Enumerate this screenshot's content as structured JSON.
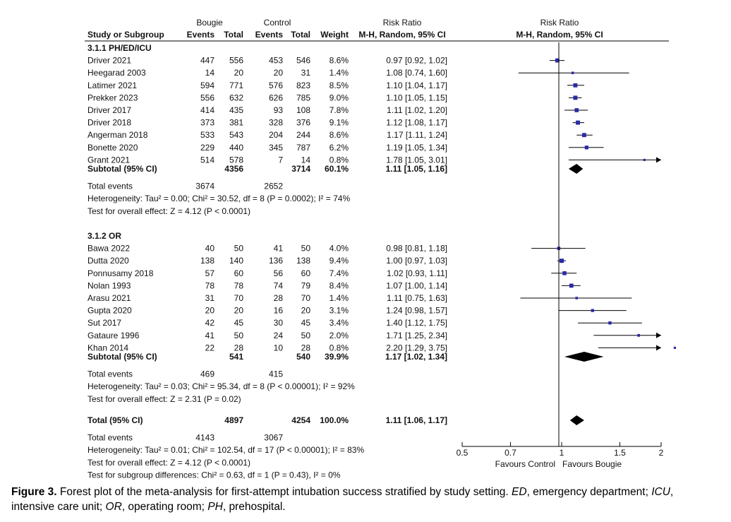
{
  "header": {
    "group1": "Bougie",
    "group2": "Control",
    "rr_col": "Risk Ratio",
    "rr_method": "M-H, Random, 95% CI",
    "plot_col": "Risk Ratio",
    "plot_method": "M-H, Random, 95% CI",
    "study_col": "Study or Subgroup",
    "events": "Events",
    "total": "Total",
    "weight": "Weight"
  },
  "chart_data": {
    "type": "forest",
    "xscale": "log",
    "xlim": [
      0.5,
      2
    ],
    "xticks": [
      {
        "value": 0.5,
        "label": "0.5"
      },
      {
        "value": 0.7,
        "label": "0.7"
      },
      {
        "value": 1,
        "label": "1"
      },
      {
        "value": 1.5,
        "label": "1.5"
      },
      {
        "value": 2,
        "label": "2"
      }
    ],
    "favours_left": "Favours Control",
    "favours_right": "Favours Bougie",
    "subgroups": [
      {
        "label": "3.1.1 PH/ED/ICU",
        "studies": [
          {
            "name": "Driver 2021",
            "e1": "447",
            "n1": "556",
            "e2": "453",
            "n2": "546",
            "weight": "8.6%",
            "rr_text": "0.97 [0.92, 1.02]",
            "rr": 0.97,
            "lo": 0.92,
            "hi": 1.02
          },
          {
            "name": "Heegarad 2003",
            "e1": "14",
            "n1": "20",
            "e2": "20",
            "n2": "31",
            "weight": "1.4%",
            "rr_text": "1.08 [0.74, 1.60]",
            "rr": 1.08,
            "lo": 0.74,
            "hi": 1.6
          },
          {
            "name": "Latimer 2021",
            "e1": "594",
            "n1": "771",
            "e2": "576",
            "n2": "823",
            "weight": "8.5%",
            "rr_text": "1.10 [1.04, 1.17]",
            "rr": 1.1,
            "lo": 1.04,
            "hi": 1.17
          },
          {
            "name": "Prekker 2023",
            "e1": "556",
            "n1": "632",
            "e2": "626",
            "n2": "785",
            "weight": "9.0%",
            "rr_text": "1.10 [1.05, 1.15]",
            "rr": 1.1,
            "lo": 1.05,
            "hi": 1.15
          },
          {
            "name": "Driver 2017",
            "e1": "414",
            "n1": "435",
            "e2": "93",
            "n2": "108",
            "weight": "7.8%",
            "rr_text": "1.11 [1.02, 1.20]",
            "rr": 1.11,
            "lo": 1.02,
            "hi": 1.2
          },
          {
            "name": "Driver 2018",
            "e1": "373",
            "n1": "381",
            "e2": "328",
            "n2": "376",
            "weight": "9.1%",
            "rr_text": "1.12 [1.08, 1.17]",
            "rr": 1.12,
            "lo": 1.08,
            "hi": 1.17
          },
          {
            "name": "Angerman 2018",
            "e1": "533",
            "n1": "543",
            "e2": "204",
            "n2": "244",
            "weight": "8.6%",
            "rr_text": "1.17 [1.11, 1.24]",
            "rr": 1.17,
            "lo": 1.11,
            "hi": 1.24
          },
          {
            "name": "Bonette 2020",
            "e1": "229",
            "n1": "440",
            "e2": "345",
            "n2": "787",
            "weight": "6.2%",
            "rr_text": "1.19 [1.05, 1.34]",
            "rr": 1.19,
            "lo": 1.05,
            "hi": 1.34
          },
          {
            "name": "Grant 2021",
            "e1": "514",
            "n1": "578",
            "e2": "7",
            "n2": "14",
            "weight": "0.8%",
            "rr_text": "1.78 [1.05, 3.01]",
            "rr": 1.78,
            "lo": 1.05,
            "hi": 3.01
          }
        ],
        "subtotal": {
          "label": "Subtotal (95% CI)",
          "n1": "4356",
          "n2": "3714",
          "weight": "60.1%",
          "rr_text": "1.11 [1.05, 1.16]",
          "rr": 1.11,
          "lo": 1.05,
          "hi": 1.16
        },
        "total_events": {
          "label": "Total events",
          "e1": "3674",
          "e2": "2652"
        },
        "heterogeneity": "Heterogeneity: Tau² = 0.00; Chi² = 30.52, df = 8 (P = 0.0002); I² = 74%",
        "overall": "Test for overall effect: Z = 4.12 (P < 0.0001)"
      },
      {
        "label": "3.1.2 OR",
        "studies": [
          {
            "name": "Bawa 2022",
            "e1": "40",
            "n1": "50",
            "e2": "41",
            "n2": "50",
            "weight": "4.0%",
            "rr_text": "0.98 [0.81, 1.18]",
            "rr": 0.98,
            "lo": 0.81,
            "hi": 1.18
          },
          {
            "name": "Dutta 2020",
            "e1": "138",
            "n1": "140",
            "e2": "136",
            "n2": "138",
            "weight": "9.4%",
            "rr_text": "1.00 [0.97, 1.03]",
            "rr": 1.0,
            "lo": 0.97,
            "hi": 1.03
          },
          {
            "name": "Ponnusamy 2018",
            "e1": "57",
            "n1": "60",
            "e2": "56",
            "n2": "60",
            "weight": "7.4%",
            "rr_text": "1.02 [0.93, 1.11]",
            "rr": 1.02,
            "lo": 0.93,
            "hi": 1.11
          },
          {
            "name": "Nolan 1993",
            "e1": "78",
            "n1": "78",
            "e2": "74",
            "n2": "79",
            "weight": "8.4%",
            "rr_text": "1.07 [1.00, 1.14]",
            "rr": 1.07,
            "lo": 1.0,
            "hi": 1.14
          },
          {
            "name": "Arasu 2021",
            "e1": "31",
            "n1": "70",
            "e2": "28",
            "n2": "70",
            "weight": "1.4%",
            "rr_text": "1.11 [0.75, 1.63]",
            "rr": 1.11,
            "lo": 0.75,
            "hi": 1.63
          },
          {
            "name": "Gupta 2020",
            "e1": "20",
            "n1": "20",
            "e2": "16",
            "n2": "20",
            "weight": "3.1%",
            "rr_text": "1.24 [0.98, 1.57]",
            "rr": 1.24,
            "lo": 0.98,
            "hi": 1.57
          },
          {
            "name": "Sut 2017",
            "e1": "42",
            "n1": "45",
            "e2": "30",
            "n2": "45",
            "weight": "3.4%",
            "rr_text": "1.40 [1.12, 1.75]",
            "rr": 1.4,
            "lo": 1.12,
            "hi": 1.75
          },
          {
            "name": "Gataure 1996",
            "e1": "41",
            "n1": "50",
            "e2": "24",
            "n2": "50",
            "weight": "2.0%",
            "rr_text": "1.71 [1.25, 2.34]",
            "rr": 1.71,
            "lo": 1.25,
            "hi": 2.34
          },
          {
            "name": "Khan 2014",
            "e1": "22",
            "n1": "28",
            "e2": "10",
            "n2": "28",
            "weight": "0.8%",
            "rr_text": "2.20 [1.29, 3.75]",
            "rr": 2.2,
            "lo": 1.29,
            "hi": 3.75
          }
        ],
        "subtotal": {
          "label": "Subtotal (95% CI)",
          "n1": "541",
          "n2": "540",
          "weight": "39.9%",
          "rr_text": "1.17 [1.02, 1.34]",
          "rr": 1.17,
          "lo": 1.02,
          "hi": 1.34
        },
        "total_events": {
          "label": "Total events",
          "e1": "469",
          "e2": "415"
        },
        "heterogeneity": "Heterogeneity: Tau² = 0.03; Chi² = 95.34, df = 8 (P < 0.00001); I² = 92%",
        "overall": "Test for overall effect: Z = 2.31 (P = 0.02)"
      }
    ],
    "total": {
      "label": "Total (95% CI)",
      "n1": "4897",
      "n2": "4254",
      "weight": "100.0%",
      "rr_text": "1.11 [1.06, 1.17]",
      "rr": 1.11,
      "lo": 1.06,
      "hi": 1.17
    },
    "total_events": {
      "label": "Total events",
      "e1": "4143",
      "e2": "3067"
    },
    "heterogeneity": "Heterogeneity: Tau² = 0.01; Chi² = 102.54, df = 17 (P < 0.00001); I² = 83%",
    "overall": "Test for overall effect: Z = 4.12 (P < 0.0001)",
    "subgroup_diff": "Test for subgroup differences: Chi² = 0.63, df = 1 (P = 0.43), I² = 0%"
  },
  "caption": {
    "label": "Figure 3.",
    "text": "Forest plot of the meta-analysis for first-attempt intubation success stratified by study setting.",
    "abbreviations": [
      {
        "abbr": "ED",
        "def": "emergency department"
      },
      {
        "abbr": "ICU",
        "def": "intensive care unit"
      },
      {
        "abbr": "OR",
        "def": "operating room"
      },
      {
        "abbr": "PH",
        "def": "prehospital"
      }
    ]
  },
  "colors": {
    "point": "#2a2aa8",
    "line": "#000000",
    "diamond": "#000000"
  }
}
